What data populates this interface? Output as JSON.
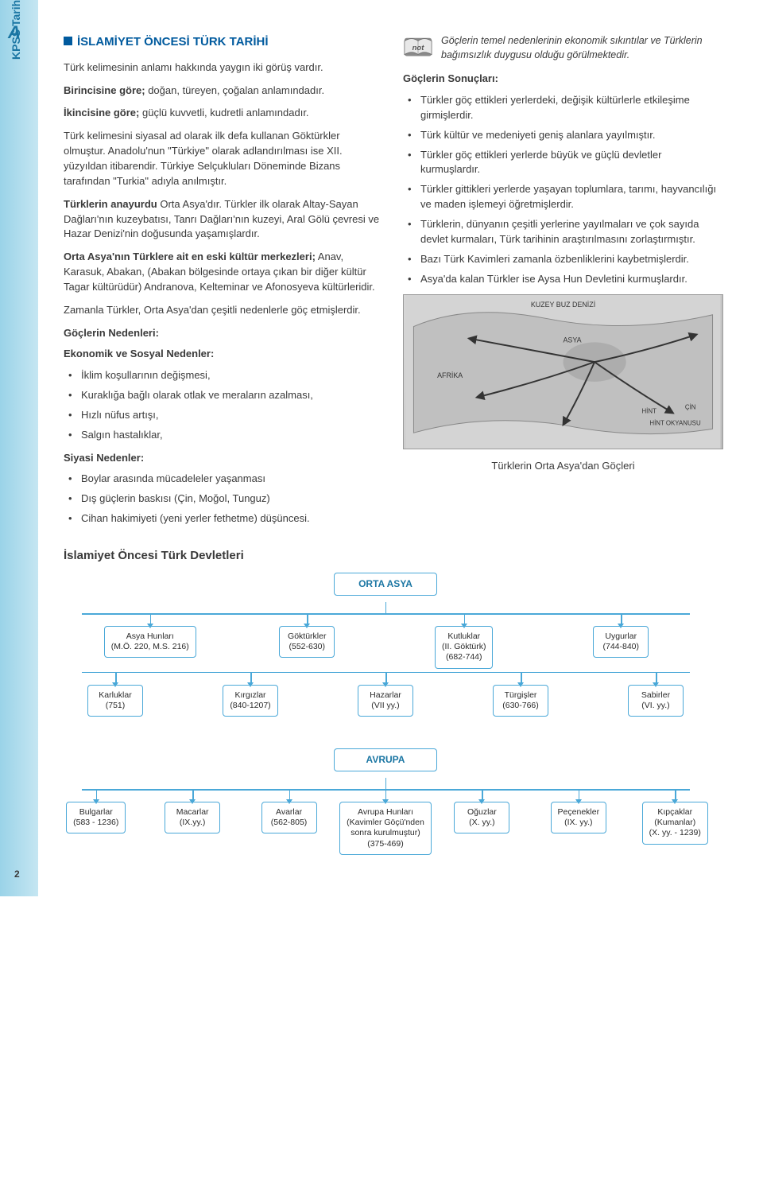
{
  "sidebar": {
    "label": "KPSS Tarih",
    "logo": "A"
  },
  "heading": "İSLAMİYET ÖNCESİ TÜRK TARİHİ",
  "left": {
    "p1": "Türk kelimesinin anlamı hakkında yaygın iki görüş vardır.",
    "p2a": "Birincisine göre;",
    "p2b": " doğan, türeyen, çoğalan anlamındadır.",
    "p3a": "İkincisine göre;",
    "p3b": " güçlü kuvvetli, kudretli anlamındadır.",
    "p4": "Türk kelimesini siyasal ad olarak ilk defa kullanan Göktürkler olmuştur. Anadolu'nun \"Türkiye\" olarak adlandırılması ise XII. yüzyıldan itibarendir. Türkiye Selçukluları Döneminde Bizans tarafından \"Turkia\" adıyla anılmıştır.",
    "p5a": "Türklerin anayurdu",
    "p5b": " Orta Asya'dır. Türkler ilk olarak Altay-Sayan Dağları'nın kuzeybatısı, Tanrı Dağları'nın kuzeyi, Aral Gölü çevresi ve Hazar Denizi'nin doğusunda yaşamışlardır.",
    "p6a": "Orta Asya'nın Türklere ait en eski kültür merkezleri;",
    "p6b": " Anav, Karasuk, Abakan, (Abakan bölgesinde ortaya çıkan bir diğer kültür Tagar kültürüdür) Andranova, Kelteminar ve Afonosyeva kültürleridir.",
    "p7": "Zamanla Türkler, Orta Asya'dan çeşitli nedenlerle göç etmişlerdir.",
    "h_reasons": "Göçlerin Nedenleri:",
    "h_eco": "Ekonomik ve Sosyal Nedenler:",
    "eco": [
      "İklim koşullarının değişmesi,",
      "Kuraklığa bağlı olarak otlak ve meraların azalması,",
      "Hızlı nüfus artışı,",
      "Salgın hastalıklar,"
    ],
    "h_pol": "Siyasi Nedenler:",
    "pol": [
      "Boylar arasında mücadeleler yaşanması",
      "Dış güçlerin baskısı (Çin, Moğol, Tunguz)",
      "Cihan hakimiyeti (yeni yerler fethetme) düşüncesi."
    ]
  },
  "right": {
    "note": "Göçlerin temel nedenlerinin ekonomik sıkıntılar ve Türklerin bağımsızlık duygusu olduğu görülmektedir.",
    "h_results": "Göçlerin Sonuçları:",
    "results": [
      "Türkler göç ettikleri yerlerdeki, değişik kültürlerle etkileşime girmişlerdir.",
      "Türk kültür ve medeniyeti geniş alanlara yayılmıştır.",
      "Türkler göç ettikleri yerlerde büyük ve güçlü devletler kurmuşlardır.",
      "Türkler gittikleri yerlerde yaşayan toplumlara, tarımı, hayvancılığı ve maden işlemeyi öğretmişlerdir.",
      "Türklerin, dünyanın çeşitli yerlerine yayılmaları ve çok sayıda devlet kurmaları, Türk tarihinin araştırılmasını zorlaştırmıştır.",
      "Bazı Türk Kavimleri zamanla özbenliklerini kaybetmişlerdir.",
      "Asya'da kalan Türkler ise Aysa Hun Devletini kurmuşlardır."
    ],
    "map_caption": "Türklerin Orta Asya'dan Göçleri"
  },
  "states_heading": "İslamiyet Öncesi Türk Devletleri",
  "tree1": {
    "root": "ORTA ASYA",
    "row1": [
      "Asya Hunları\n(M.Ö. 220, M.S. 216)",
      "Göktürkler\n(552-630)",
      "Kutluklar\n(II. Göktürk)\n(682-744)",
      "Uygurlar\n(744-840)"
    ],
    "row2": [
      "Karluklar\n(751)",
      "Kırgızlar\n(840-1207)",
      "Hazarlar\n(VII yy.)",
      "Türgişler\n(630-766)",
      "Sabirler\n(VI. yy.)"
    ]
  },
  "tree2": {
    "root": "AVRUPA",
    "row": [
      "Bulgarlar\n(583 - 1236)",
      "Macarlar\n(IX.yy.)",
      "Avarlar\n(562-805)",
      "Avrupa Hunları\n(Kavimler Göçü'nden\nsonra kurulmuştur)\n(375-469)",
      "Oğuzlar\n(X. yy.)",
      "Peçenekler\n(IX. yy.)",
      "Kıpçaklar\n(Kumanlar)\n(X. yy. - 1239)"
    ]
  },
  "page_number": "2"
}
